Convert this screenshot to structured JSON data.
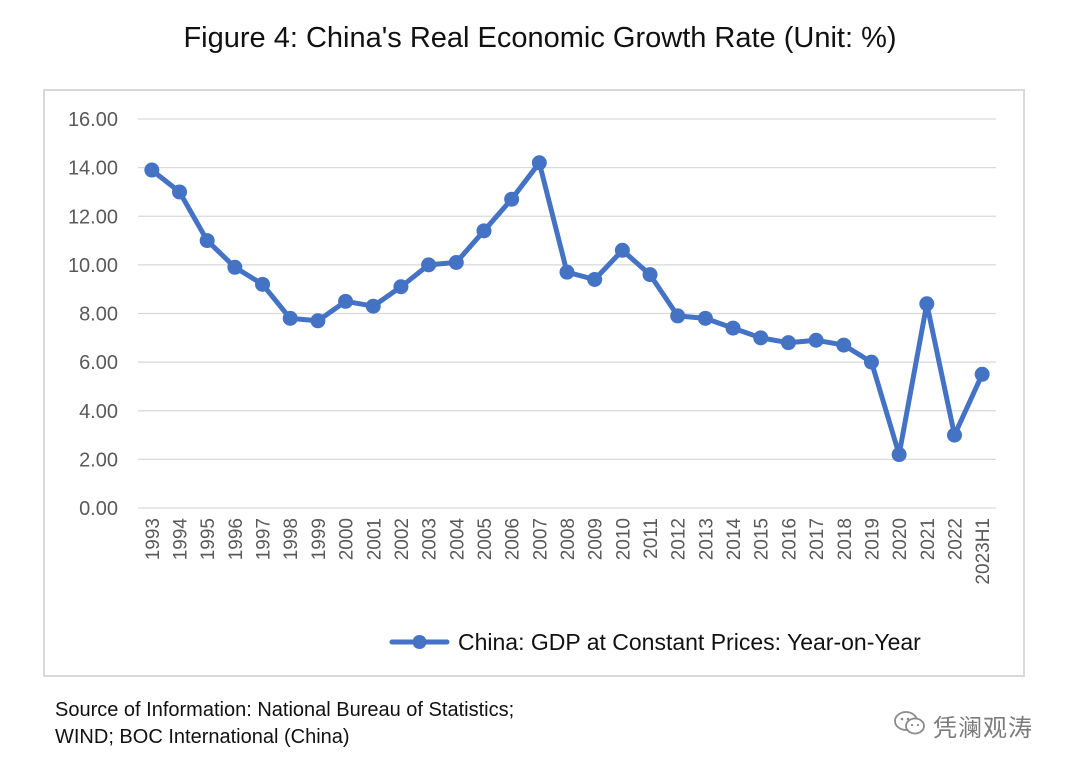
{
  "figure": {
    "title": "Figure 4: China's Real Economic Growth Rate (Unit: %)"
  },
  "chart_data": {
    "type": "line",
    "title": "Figure 4: China's Real Economic Growth Rate (Unit: %)",
    "xlabel": "",
    "ylabel": "",
    "categories": [
      "1993",
      "1994",
      "1995",
      "1996",
      "1997",
      "1998",
      "1999",
      "2000",
      "2001",
      "2002",
      "2003",
      "2004",
      "2005",
      "2006",
      "2007",
      "2008",
      "2009",
      "2010",
      "2011",
      "2012",
      "2013",
      "2014",
      "2015",
      "2016",
      "2017",
      "2018",
      "2019",
      "2020",
      "2021",
      "2022",
      "2023H1"
    ],
    "series": [
      {
        "name": "China: GDP at Constant Prices: Year-on-Year",
        "color": "#4472c4",
        "values": [
          13.9,
          13.0,
          11.0,
          9.9,
          9.2,
          7.8,
          7.7,
          8.5,
          8.3,
          9.1,
          10.0,
          10.1,
          11.4,
          12.7,
          14.2,
          9.7,
          9.4,
          10.6,
          9.6,
          7.9,
          7.8,
          7.4,
          7.0,
          6.8,
          6.9,
          6.7,
          6.0,
          2.2,
          8.4,
          3.0,
          5.5
        ]
      }
    ],
    "yticks": [
      "0.00",
      "2.00",
      "4.00",
      "6.00",
      "8.00",
      "10.00",
      "12.00",
      "14.00",
      "16.00"
    ],
    "ylim": [
      0,
      16
    ],
    "grid": true,
    "legend_position": "bottom"
  },
  "footer": {
    "source_line1": "Source of Information: National Bureau of Statistics;",
    "source_line2": "WIND; BOC International (China)",
    "watermark_text": "凭澜观涛",
    "watermark_icon": "wechat-icon"
  }
}
